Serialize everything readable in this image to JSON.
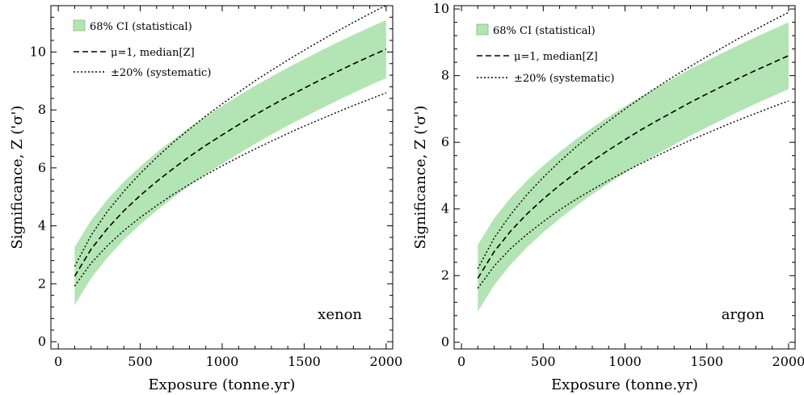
{
  "chart_data": [
    {
      "type": "line",
      "annotation": "xenon",
      "xlabel": "Exposure (tonne.yr)",
      "ylabel": "Significance, Z ('σ')",
      "xlim": [
        -45,
        2040
      ],
      "ylim": [
        -0.25,
        11.6
      ],
      "xticks": [
        0,
        500,
        1000,
        1500,
        2000
      ],
      "yticks": [
        0,
        2,
        4,
        6,
        8,
        10
      ],
      "grid": false,
      "legend": {
        "position": "top-left",
        "entries": [
          "68% CI (statistical)",
          "μ=1, median[Z]",
          "±20% (systematic)"
        ]
      },
      "x": [
        100,
        200,
        300,
        400,
        500,
        600,
        700,
        800,
        900,
        1000,
        1100,
        1200,
        1300,
        1400,
        1500,
        1600,
        1700,
        1800,
        1900,
        2000
      ],
      "series": [
        {
          "name": "μ=1, median[Z]",
          "style": "dashed",
          "values": [
            2.26,
            3.19,
            3.91,
            4.52,
            5.05,
            5.53,
            5.97,
            6.39,
            6.78,
            7.14,
            7.49,
            7.83,
            8.15,
            8.46,
            8.75,
            9.04,
            9.32,
            9.59,
            9.85,
            10.1
          ]
        },
        {
          "name": "±20% (systematic) upper",
          "style": "dotted",
          "values": [
            2.6,
            3.67,
            4.5,
            5.19,
            5.81,
            6.36,
            6.87,
            7.34,
            7.79,
            8.21,
            8.61,
            9.0,
            9.37,
            9.72,
            10.06,
            10.39,
            10.71,
            11.02,
            11.32,
            11.61
          ]
        },
        {
          "name": "±20% (systematic) lower",
          "style": "dotted",
          "values": [
            1.92,
            2.71,
            3.32,
            3.84,
            4.29,
            4.7,
            5.08,
            5.43,
            5.76,
            6.07,
            6.37,
            6.65,
            6.92,
            7.19,
            7.44,
            7.68,
            7.92,
            8.15,
            8.37,
            8.59
          ]
        },
        {
          "name": "68% CI (statistical) upper",
          "style": "band",
          "values": [
            3.26,
            4.19,
            4.91,
            5.52,
            6.05,
            6.53,
            6.97,
            7.39,
            7.78,
            8.14,
            8.49,
            8.83,
            9.15,
            9.46,
            9.75,
            10.04,
            10.32,
            10.59,
            10.85,
            11.1
          ]
        },
        {
          "name": "68% CI (statistical) lower",
          "style": "band",
          "values": [
            1.26,
            2.19,
            2.91,
            3.52,
            4.05,
            4.53,
            4.97,
            5.39,
            5.78,
            6.14,
            6.49,
            6.83,
            7.15,
            7.46,
            7.75,
            8.04,
            8.32,
            8.59,
            8.85,
            9.1
          ]
        }
      ]
    },
    {
      "type": "line",
      "annotation": "argon",
      "xlabel": "Exposure (tonne.yr)",
      "ylabel": "Significance, Z ('σ')",
      "xlim": [
        -45,
        2040
      ],
      "ylim": [
        -0.2,
        10.1
      ],
      "xticks": [
        0,
        500,
        1000,
        1500,
        2000
      ],
      "yticks": [
        0,
        2,
        4,
        6,
        8,
        10
      ],
      "grid": false,
      "legend": {
        "position": "top-left",
        "entries": [
          "68% CI (statistical)",
          "μ=1, median[Z]",
          "±20% (systematic)"
        ]
      },
      "x": [
        100,
        200,
        300,
        400,
        500,
        600,
        700,
        800,
        900,
        1000,
        1100,
        1200,
        1300,
        1400,
        1500,
        1600,
        1700,
        1800,
        1900,
        2000
      ],
      "series": [
        {
          "name": "μ=1, median[Z]",
          "style": "dashed",
          "values": [
            1.92,
            2.72,
            3.33,
            3.85,
            4.3,
            4.71,
            5.09,
            5.44,
            5.77,
            6.08,
            6.38,
            6.66,
            6.93,
            7.2,
            7.45,
            7.69,
            7.93,
            8.16,
            8.38,
            8.6
          ]
        },
        {
          "name": "±20% (systematic) upper",
          "style": "dotted",
          "values": [
            2.21,
            3.13,
            3.83,
            4.43,
            4.95,
            5.42,
            5.86,
            6.26,
            6.64,
            7.0,
            7.34,
            7.67,
            7.98,
            8.28,
            8.57,
            8.85,
            9.13,
            9.39,
            9.65,
            9.9
          ]
        },
        {
          "name": "±20% (systematic) lower",
          "style": "dotted",
          "values": [
            1.62,
            2.29,
            2.81,
            3.24,
            3.62,
            3.97,
            4.29,
            4.58,
            4.86,
            5.12,
            5.37,
            5.61,
            5.84,
            6.06,
            6.27,
            6.48,
            6.68,
            6.87,
            7.06,
            7.24
          ]
        },
        {
          "name": "68% CI (statistical) upper",
          "style": "band",
          "values": [
            2.92,
            3.72,
            4.33,
            4.85,
            5.3,
            5.71,
            6.09,
            6.44,
            6.77,
            7.08,
            7.38,
            7.66,
            7.93,
            8.2,
            8.45,
            8.69,
            8.93,
            9.16,
            9.38,
            9.6
          ]
        },
        {
          "name": "68% CI (statistical) lower",
          "style": "band",
          "values": [
            0.92,
            1.72,
            2.33,
            2.85,
            3.3,
            3.71,
            4.09,
            4.44,
            4.77,
            5.08,
            5.38,
            5.66,
            5.93,
            6.2,
            6.45,
            6.69,
            6.93,
            7.16,
            7.38,
            7.6
          ]
        }
      ]
    }
  ]
}
